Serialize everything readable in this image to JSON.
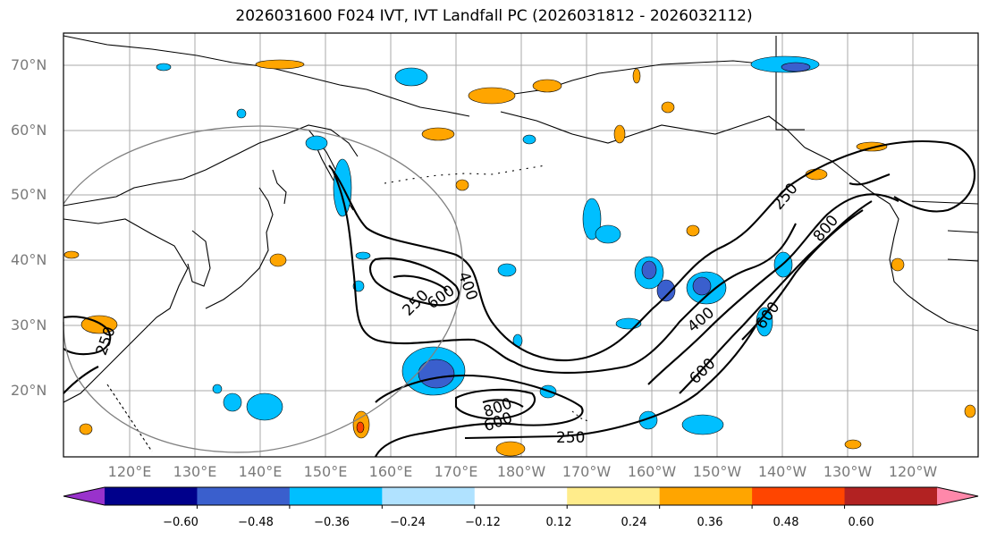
{
  "title": "2026031600 F024 IVT, IVT Landfall PC (2026031812 - 2026032112)",
  "lat_labels": [
    "70°N",
    "60°N",
    "50°N",
    "40°N",
    "30°N",
    "20°N"
  ],
  "lon_labels": [
    "120°E",
    "130°E",
    "140°E",
    "150°E",
    "160°E",
    "170°E",
    "180°W",
    "170°W",
    "160°W",
    "150°W",
    "140°W",
    "130°W",
    "120°W"
  ],
  "contour_labels": [
    "250",
    "600",
    "400",
    "250",
    "600",
    "800",
    "400",
    "600",
    "800",
    "250",
    "250"
  ],
  "colorbar": {
    "tick_labels": [
      "−0.60",
      "−0.48",
      "−0.36",
      "−0.24",
      "−0.12",
      "0.12",
      "0.24",
      "0.36",
      "0.48",
      "0.60"
    ],
    "colors": [
      "#9932cc",
      "#00008b",
      "#3a5fcd",
      "#00bfff",
      "#b0e2ff",
      "#ffffff",
      "#ffec8b",
      "#ffa500",
      "#ff4500",
      "#b22222",
      "#ff88aa"
    ]
  }
}
